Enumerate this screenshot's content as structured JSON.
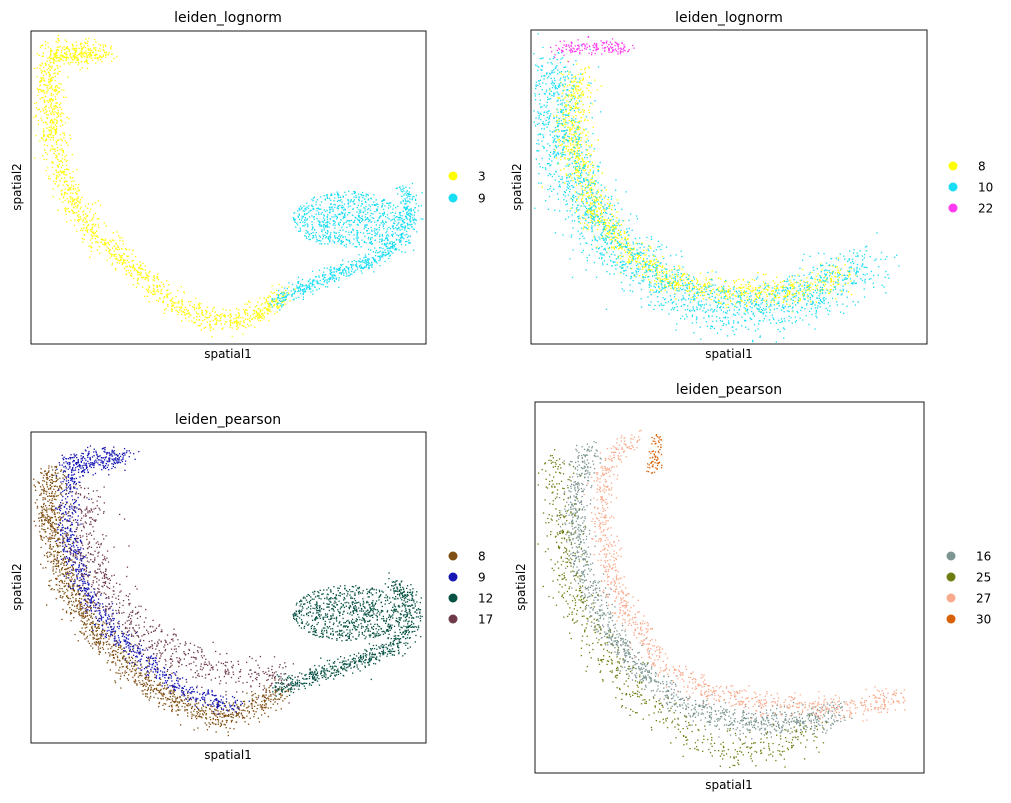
{
  "figure": {
    "panel_count": 4
  },
  "chart_data": [
    {
      "type": "scatter",
      "title": "leiden_lognorm",
      "xlabel": "spatial1",
      "ylabel": "spatial2",
      "xticks": "none",
      "yticks": "none",
      "legend_position": "right",
      "series": [
        {
          "name": "3",
          "color": "#ffff00",
          "path": [
            [
              0.06,
              0.08
            ],
            [
              0.11,
              0.08
            ],
            [
              0.19,
              0.07
            ],
            [
              0.12,
              0.06
            ],
            [
              0.06,
              0.06
            ],
            [
              0.04,
              0.12
            ],
            [
              0.05,
              0.3
            ],
            [
              0.08,
              0.48
            ],
            [
              0.15,
              0.63
            ],
            [
              0.25,
              0.75
            ],
            [
              0.34,
              0.85
            ],
            [
              0.44,
              0.92
            ],
            [
              0.52,
              0.92
            ],
            [
              0.58,
              0.9
            ],
            [
              0.64,
              0.84
            ]
          ],
          "spread": 0.018,
          "points": 1600
        },
        {
          "name": "9",
          "color": "#17ddf5",
          "path": [
            [
              0.62,
              0.86
            ],
            [
              0.7,
              0.81
            ],
            [
              0.8,
              0.76
            ],
            [
              0.88,
              0.72
            ],
            [
              0.94,
              0.66
            ],
            [
              0.96,
              0.58
            ],
            [
              0.94,
              0.5
            ]
          ],
          "spread": 0.013,
          "points": 650,
          "cloud": {
            "cx": 0.8,
            "cy": 0.6,
            "rx": 0.14,
            "ry": 0.09,
            "points": 700
          }
        }
      ]
    },
    {
      "type": "scatter",
      "title": "leiden_lognorm",
      "xlabel": "spatial1",
      "ylabel": "spatial2",
      "xticks": "none",
      "yticks": "none",
      "legend_position": "right",
      "series": [
        {
          "name": "8",
          "color": "#ffff00",
          "path": [
            [
              0.13,
              0.13
            ],
            [
              0.1,
              0.22
            ],
            [
              0.11,
              0.4
            ],
            [
              0.16,
              0.58
            ],
            [
              0.24,
              0.7
            ],
            [
              0.36,
              0.8
            ],
            [
              0.52,
              0.84
            ],
            [
              0.66,
              0.83
            ],
            [
              0.8,
              0.78
            ]
          ],
          "spread": 0.022,
          "points": 1400
        },
        {
          "name": "10",
          "color": "#17ddf5",
          "path": [
            [
              0.05,
              0.1
            ],
            [
              0.05,
              0.22
            ],
            [
              0.08,
              0.4
            ],
            [
              0.15,
              0.6
            ],
            [
              0.24,
              0.72
            ],
            [
              0.36,
              0.83
            ],
            [
              0.5,
              0.89
            ],
            [
              0.62,
              0.88
            ],
            [
              0.74,
              0.82
            ],
            [
              0.85,
              0.74
            ]
          ],
          "spread": 0.04,
          "points": 2000
        },
        {
          "name": "22",
          "color": "#ff3af0",
          "path": [
            [
              0.07,
              0.06
            ],
            [
              0.13,
              0.05
            ],
            [
              0.19,
              0.05
            ],
            [
              0.24,
              0.06
            ]
          ],
          "spread": 0.012,
          "points": 160
        }
      ]
    },
    {
      "type": "scatter",
      "title": "leiden_pearson",
      "xlabel": "spatial1",
      "ylabel": "spatial2",
      "xticks": "none",
      "yticks": "none",
      "legend_position": "right",
      "series": [
        {
          "name": "8",
          "color": "#7f4f13",
          "path": [
            [
              0.05,
              0.12
            ],
            [
              0.05,
              0.3
            ],
            [
              0.09,
              0.5
            ],
            [
              0.17,
              0.66
            ],
            [
              0.27,
              0.78
            ],
            [
              0.38,
              0.88
            ],
            [
              0.47,
              0.92
            ],
            [
              0.55,
              0.89
            ],
            [
              0.63,
              0.83
            ]
          ],
          "spread": 0.02,
          "points": 1500
        },
        {
          "name": "9",
          "color": "#1717b5",
          "path": [
            [
              0.08,
              0.1
            ],
            [
              0.18,
              0.07
            ],
            [
              0.24,
              0.08
            ],
            [
              0.1,
              0.12
            ],
            [
              0.09,
              0.3
            ],
            [
              0.13,
              0.5
            ],
            [
              0.21,
              0.64
            ],
            [
              0.31,
              0.76
            ],
            [
              0.42,
              0.85
            ],
            [
              0.52,
              0.88
            ]
          ],
          "spread": 0.015,
          "points": 1100
        },
        {
          "name": "12",
          "color": "#075244",
          "path": [
            [
              0.62,
              0.82
            ],
            [
              0.72,
              0.78
            ],
            [
              0.82,
              0.74
            ],
            [
              0.9,
              0.7
            ],
            [
              0.95,
              0.64
            ],
            [
              0.96,
              0.56
            ],
            [
              0.92,
              0.48
            ]
          ],
          "spread": 0.014,
          "points": 700,
          "cloud": {
            "cx": 0.8,
            "cy": 0.58,
            "rx": 0.14,
            "ry": 0.09,
            "points": 700
          }
        },
        {
          "name": "17",
          "color": "#6f3b4b",
          "path": [
            [
              0.13,
              0.2
            ],
            [
              0.14,
              0.38
            ],
            [
              0.2,
              0.55
            ],
            [
              0.3,
              0.67
            ],
            [
              0.42,
              0.74
            ],
            [
              0.54,
              0.78
            ],
            [
              0.64,
              0.78
            ]
          ],
          "spread": 0.03,
          "points": 700
        }
      ]
    },
    {
      "type": "scatter",
      "title": "leiden_pearson",
      "xlabel": "spatial1",
      "ylabel": "spatial2",
      "xticks": "none",
      "yticks": "none",
      "legend_position": "right",
      "series": [
        {
          "name": "16",
          "color": "#7d9691",
          "path": [
            [
              0.13,
              0.12
            ],
            [
              0.1,
              0.28
            ],
            [
              0.12,
              0.45
            ],
            [
              0.18,
              0.6
            ],
            [
              0.27,
              0.73
            ],
            [
              0.38,
              0.82
            ],
            [
              0.52,
              0.86
            ],
            [
              0.66,
              0.86
            ],
            [
              0.78,
              0.84
            ]
          ],
          "spread": 0.018,
          "points": 1300
        },
        {
          "name": "25",
          "color": "#6f7d10",
          "path": [
            [
              0.05,
              0.14
            ],
            [
              0.06,
              0.3
            ],
            [
              0.09,
              0.5
            ],
            [
              0.16,
              0.66
            ],
            [
              0.27,
              0.8
            ],
            [
              0.4,
              0.9
            ],
            [
              0.52,
              0.94
            ],
            [
              0.62,
              0.93
            ],
            [
              0.72,
              0.9
            ]
          ],
          "spread": 0.025,
          "points": 650
        },
        {
          "name": "27",
          "color": "#f8aa8c",
          "path": [
            [
              0.26,
              0.09
            ],
            [
              0.18,
              0.16
            ],
            [
              0.17,
              0.35
            ],
            [
              0.22,
              0.55
            ],
            [
              0.31,
              0.69
            ],
            [
              0.42,
              0.77
            ],
            [
              0.56,
              0.81
            ],
            [
              0.7,
              0.82
            ],
            [
              0.84,
              0.82
            ],
            [
              0.95,
              0.79
            ]
          ],
          "spread": 0.016,
          "points": 1000
        },
        {
          "name": "30",
          "color": "#d86007",
          "path": [
            [
              0.31,
              0.09
            ],
            [
              0.31,
              0.14
            ],
            [
              0.3,
              0.19
            ]
          ],
          "spread": 0.008,
          "points": 70
        }
      ]
    }
  ]
}
